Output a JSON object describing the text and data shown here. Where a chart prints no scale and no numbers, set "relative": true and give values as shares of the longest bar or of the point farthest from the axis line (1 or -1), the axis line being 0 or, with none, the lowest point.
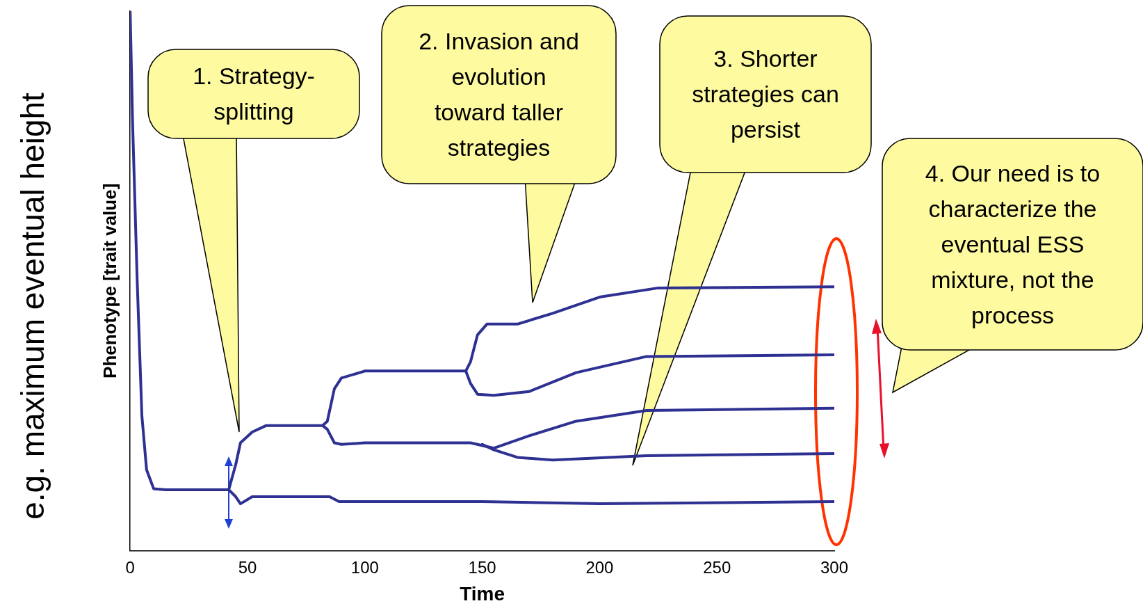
{
  "chart_data": {
    "type": "line",
    "relative": true,
    "xlabel": "Time",
    "ylabel": "Phenotype [trait value]",
    "xlim": [
      0,
      300
    ],
    "xticks": [
      0,
      50,
      100,
      150,
      200,
      250,
      300
    ],
    "grid": false,
    "legend": false,
    "marker": "none",
    "line_style": "solid",
    "series": [
      {
        "color": "#2e3192",
        "x": [
          0,
          1,
          3,
          5,
          7,
          10,
          15,
          42,
          45,
          47,
          52,
          85,
          89,
          150,
          200,
          300
        ],
        "values": [
          1,
          0.8,
          0.5,
          0.25,
          0.15,
          0.115,
          0.113,
          0.113,
          0.1,
          0.087,
          0.1,
          0.1,
          0.091,
          0.091,
          0.087,
          0.091
        ]
      },
      {
        "color": "#2e3192",
        "x": [
          42,
          45,
          47,
          52,
          58,
          82,
          84,
          87,
          90,
          100,
          143,
          145,
          148,
          152,
          165,
          180,
          200,
          225,
          300
        ],
        "values": [
          0.113,
          0.16,
          0.2,
          0.22,
          0.232,
          0.232,
          0.24,
          0.3,
          0.32,
          0.333,
          0.333,
          0.35,
          0.4,
          0.42,
          0.42,
          0.44,
          0.47,
          0.487,
          0.489
        ]
      },
      {
        "color": "#2e3192",
        "x": [
          143,
          145,
          148,
          155,
          170,
          190,
          220,
          300
        ],
        "values": [
          0.333,
          0.31,
          0.29,
          0.288,
          0.295,
          0.33,
          0.36,
          0.363
        ]
      },
      {
        "color": "#2e3192",
        "x": [
          82,
          84,
          87,
          90,
          100,
          145,
          155,
          170,
          190,
          220,
          300
        ],
        "values": [
          0.232,
          0.225,
          0.2,
          0.197,
          0.2,
          0.2,
          0.19,
          0.213,
          0.24,
          0.26,
          0.264
        ]
      },
      {
        "color": "#2e3192",
        "x": [
          150,
          155,
          165,
          180,
          220,
          300
        ],
        "values": [
          0.197,
          0.187,
          0.173,
          0.168,
          0.176,
          0.18
        ]
      }
    ],
    "annotations": [
      "1. Strategy-splitting",
      "2. Invasion and evolution toward taller strategies",
      "3. Shorter strategies can persist",
      "4. Our need is to characterize the eventual ESS mixture, not the process",
      "e.g. maximum eventual height"
    ]
  }
}
